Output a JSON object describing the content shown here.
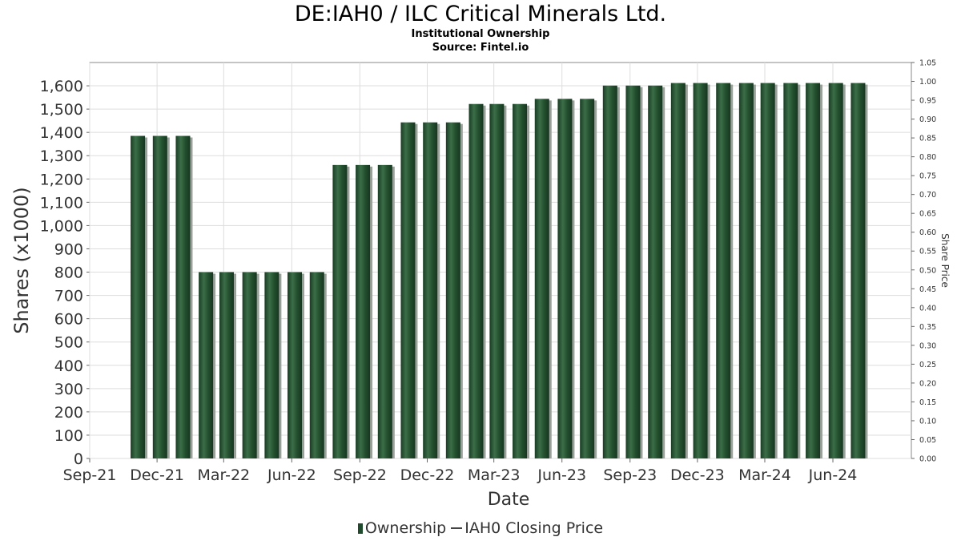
{
  "header": {
    "title": "DE:IAH0 / ILC Critical Minerals Ltd.",
    "subtitle": "Institutional Ownership",
    "source": "Source: Fintel.io"
  },
  "legend": {
    "ownership": "Ownership",
    "price": "IAH0 Closing Price"
  },
  "colors": {
    "bar": "#1f4a2c",
    "bar_highlight": "#3b6e48",
    "bar_shadow": "#9aa09a",
    "grid": "#dddddd",
    "plot_border": "#888888"
  },
  "chart_data": {
    "type": "bar",
    "xlabel": "Date",
    "ylabel": "Shares (x1000)",
    "y2label": "Share Price",
    "ylim": [
      0,
      1700
    ],
    "y2lim": [
      0,
      1.05
    ],
    "yticks": [
      0,
      100,
      200,
      300,
      400,
      500,
      600,
      700,
      800,
      900,
      1000,
      1100,
      1200,
      1300,
      1400,
      1500,
      1600
    ],
    "ytick_labels": [
      "0",
      "100",
      "200",
      "300",
      "400",
      "500",
      "600",
      "700",
      "800",
      "900",
      "1,000",
      "1,100",
      "1,200",
      "1,300",
      "1,400",
      "1,500",
      "1,600"
    ],
    "y2ticks": [
      "0.00",
      "0.05",
      "0.10",
      "0.15",
      "0.20",
      "0.25",
      "0.30",
      "0.35",
      "0.40",
      "0.45",
      "0.50",
      "0.55",
      "0.60",
      "0.65",
      "0.70",
      "0.75",
      "0.80",
      "0.85",
      "0.90",
      "0.95",
      "1.00",
      "1.05"
    ],
    "x_range": [
      "2021-09-01",
      "2024-09-15"
    ],
    "xticks": [
      {
        "date": "2021-09-01",
        "label": "Sep-21"
      },
      {
        "date": "2021-12-01",
        "label": "Dec-21"
      },
      {
        "date": "2022-03-01",
        "label": "Mar-22"
      },
      {
        "date": "2022-06-01",
        "label": "Jun-22"
      },
      {
        "date": "2022-09-01",
        "label": "Sep-22"
      },
      {
        "date": "2022-12-01",
        "label": "Dec-22"
      },
      {
        "date": "2023-03-01",
        "label": "Mar-23"
      },
      {
        "date": "2023-06-01",
        "label": "Jun-23"
      },
      {
        "date": "2023-09-01",
        "label": "Sep-23"
      },
      {
        "date": "2023-12-01",
        "label": "Dec-23"
      },
      {
        "date": "2024-03-01",
        "label": "Mar-24"
      },
      {
        "date": "2024-06-01",
        "label": "Jun-24"
      }
    ],
    "grid": true,
    "legend_position": "bottom",
    "series": [
      {
        "name": "Ownership",
        "points": [
          {
            "date": "2021-11-05",
            "value": 1385
          },
          {
            "date": "2021-12-05",
            "value": 1385
          },
          {
            "date": "2022-01-05",
            "value": 1385
          },
          {
            "date": "2022-02-05",
            "value": 800
          },
          {
            "date": "2022-03-05",
            "value": 800
          },
          {
            "date": "2022-04-05",
            "value": 800
          },
          {
            "date": "2022-05-05",
            "value": 800
          },
          {
            "date": "2022-06-05",
            "value": 800
          },
          {
            "date": "2022-07-05",
            "value": 800
          },
          {
            "date": "2022-08-05",
            "value": 1260
          },
          {
            "date": "2022-09-05",
            "value": 1260
          },
          {
            "date": "2022-10-05",
            "value": 1260
          },
          {
            "date": "2022-11-05",
            "value": 1443
          },
          {
            "date": "2022-12-05",
            "value": 1443
          },
          {
            "date": "2023-01-05",
            "value": 1443
          },
          {
            "date": "2023-02-05",
            "value": 1522
          },
          {
            "date": "2023-03-05",
            "value": 1522
          },
          {
            "date": "2023-04-05",
            "value": 1522
          },
          {
            "date": "2023-05-05",
            "value": 1544
          },
          {
            "date": "2023-06-05",
            "value": 1544
          },
          {
            "date": "2023-07-05",
            "value": 1544
          },
          {
            "date": "2023-08-05",
            "value": 1601
          },
          {
            "date": "2023-09-05",
            "value": 1601
          },
          {
            "date": "2023-10-05",
            "value": 1601
          },
          {
            "date": "2023-11-05",
            "value": 1612
          },
          {
            "date": "2023-12-05",
            "value": 1612
          },
          {
            "date": "2024-01-05",
            "value": 1612
          },
          {
            "date": "2024-02-05",
            "value": 1612
          },
          {
            "date": "2024-03-05",
            "value": 1612
          },
          {
            "date": "2024-04-05",
            "value": 1612
          },
          {
            "date": "2024-05-05",
            "value": 1612
          },
          {
            "date": "2024-06-05",
            "value": 1612
          },
          {
            "date": "2024-07-05",
            "value": 1612
          }
        ]
      },
      {
        "name": "IAH0 Closing Price",
        "points": []
      }
    ]
  }
}
